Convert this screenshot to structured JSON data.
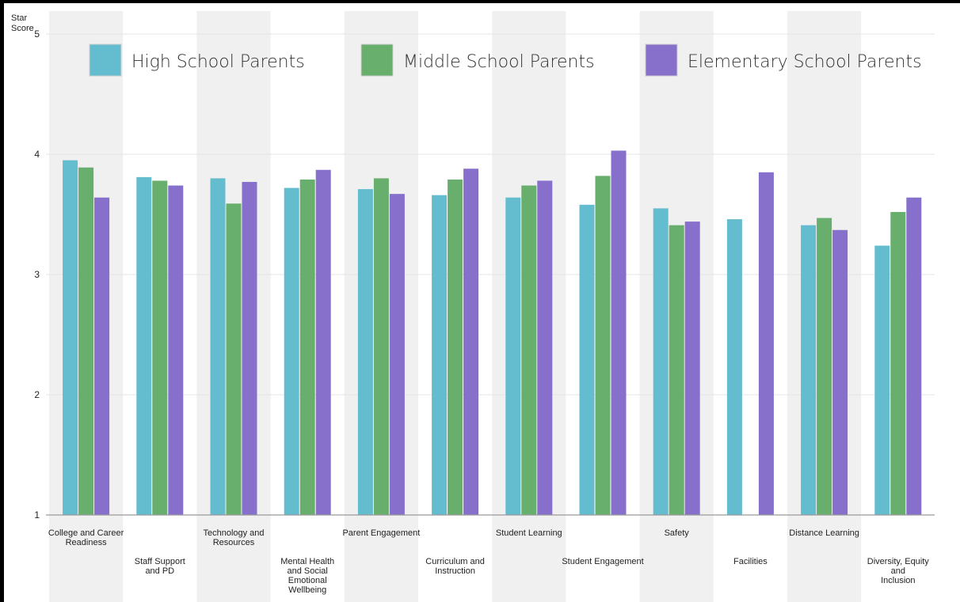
{
  "chart_data": {
    "type": "bar",
    "ylabel": [
      "Star",
      "Score"
    ],
    "ylim": [
      1,
      5
    ],
    "yticks": [
      1,
      2,
      3,
      4,
      5
    ],
    "grid": true,
    "legend_position": "top",
    "categories": [
      [
        "College and Career",
        "Readiness"
      ],
      [
        "Staff Support",
        "and PD"
      ],
      [
        "Technology and",
        "Resources"
      ],
      [
        "Mental Health",
        "and Social",
        "Emotional",
        "Wellbeing"
      ],
      [
        "Parent Engagement"
      ],
      [
        "Curriculum and",
        "Instruction"
      ],
      [
        "Student Learning"
      ],
      [
        "Student Engagement"
      ],
      [
        "Safety"
      ],
      [
        "Facilities"
      ],
      [
        "Distance Learning"
      ],
      [
        "Diversity, Equity",
        "and",
        "Inclusion"
      ]
    ],
    "label_rows": [
      0,
      1,
      0,
      1,
      0,
      1,
      0,
      1,
      0,
      1,
      0,
      1
    ],
    "series": [
      {
        "name": "High School Parents",
        "color": "#64bccf",
        "values": [
          3.95,
          3.81,
          3.8,
          3.72,
          3.71,
          3.66,
          3.64,
          3.58,
          3.55,
          3.46,
          3.41,
          3.24
        ]
      },
      {
        "name": "Middle School Parents",
        "color": "#68ae6d",
        "values": [
          3.89,
          3.78,
          3.59,
          3.79,
          3.8,
          3.79,
          3.74,
          3.82,
          3.41,
          null,
          3.47,
          3.52
        ]
      },
      {
        "name": "Elementary School Parents",
        "color": "#8670cb",
        "values": [
          3.64,
          3.74,
          3.77,
          3.87,
          3.67,
          3.88,
          3.78,
          4.03,
          3.44,
          3.85,
          3.37,
          3.64
        ]
      }
    ]
  }
}
